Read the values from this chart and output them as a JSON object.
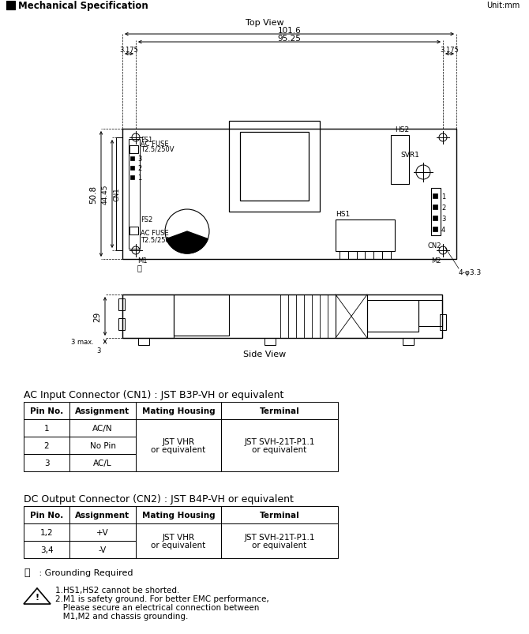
{
  "title": "Mechanical Specification",
  "unit": "Unit:mm",
  "top_view_label": "Top View",
  "side_view_label": "Side View",
  "dim_101_6": "101.6",
  "dim_95_25": "95.25",
  "dim_3_175_left": "3.175",
  "dim_3_175_right": "3.175",
  "dim_50_8": "50.8",
  "dim_44_45": "44.45",
  "dim_29": "29",
  "dim_3max": "3 max.",
  "dim_3": "3",
  "hole_label": "4-φ3.3",
  "ac_input_title": "AC Input Connector (CN1) : JST B3P-VH or equivalent",
  "dc_output_title": "DC Output Connector (CN2) : JST B4P-VH or equivalent",
  "ac_table_headers": [
    "Pin No.",
    "Assignment",
    "Mating Housing",
    "Terminal"
  ],
  "ac_pin_col": [
    "1",
    "2",
    "3"
  ],
  "ac_assign_col": [
    "AC/N",
    "No Pin",
    "AC/L"
  ],
  "ac_mating": "JST VHR\nor equivalent",
  "ac_terminal": "JST SVH-21T-P1.1\nor equivalent",
  "dc_table_headers": [
    "Pin No.",
    "Assignment",
    "Mating Housing",
    "Terminal"
  ],
  "dc_pin_col": [
    "1,2",
    "3,4"
  ],
  "dc_assign_col": [
    "+V",
    "-V"
  ],
  "dc_mating": "JST VHR\nor equivalent",
  "dc_terminal": "JST SVH-21T-P1.1\nor equivalent",
  "ground_note": " : Grounding Required",
  "notes_line1": "1.HS1,HS2 cannot be shorted.",
  "notes_line2": "2.M1 is safety ground. For better EMC performance,",
  "notes_line3": "   Please secure an electrical connection between",
  "notes_line4": "   M1,M2 and chassis grounding.",
  "bg_color": "#ffffff",
  "line_color": "#000000",
  "text_color": "#000000"
}
